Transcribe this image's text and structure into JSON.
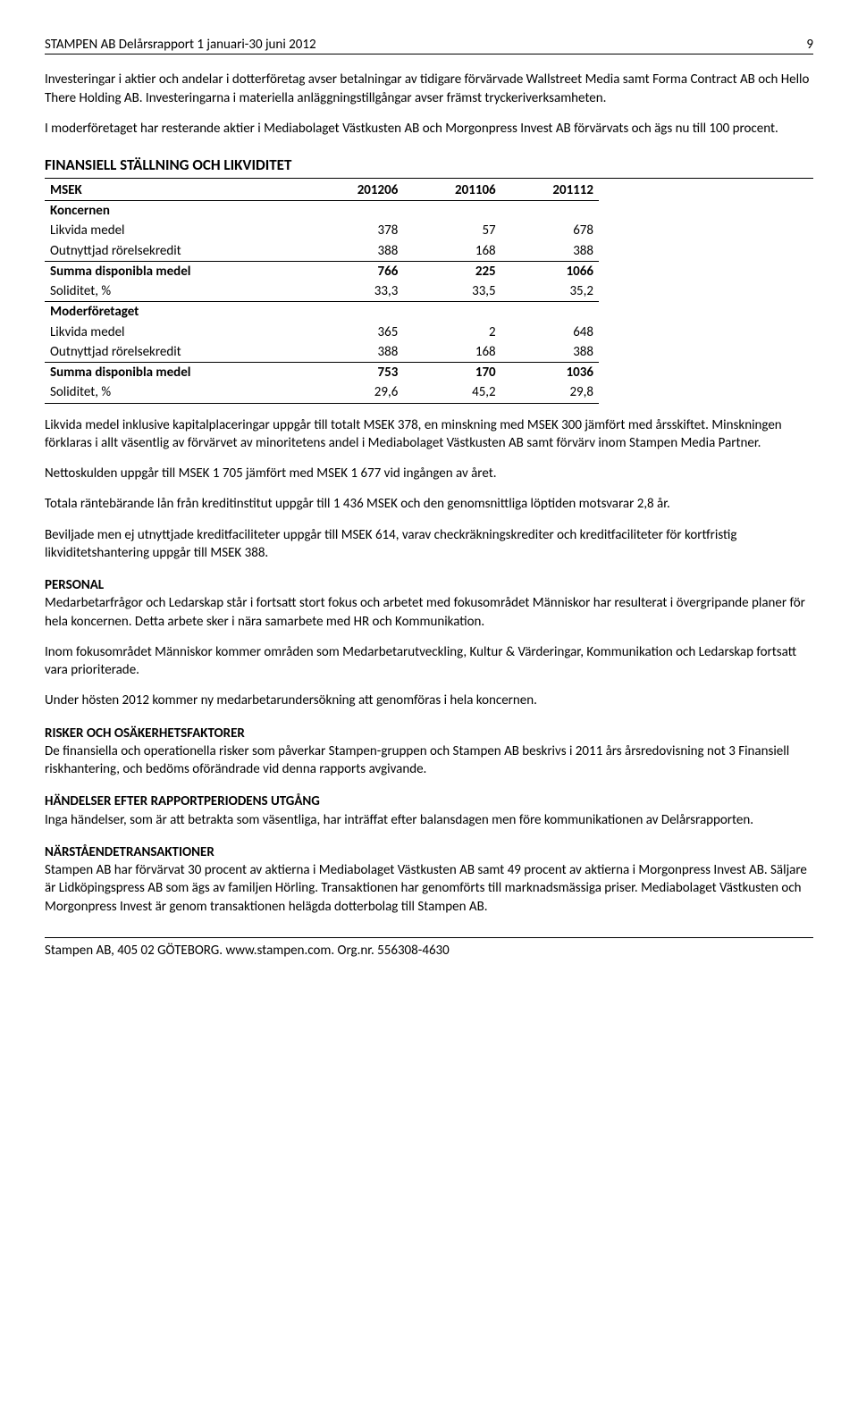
{
  "header": {
    "title": "STAMPEN AB Delårsrapport 1 januari-30 juni 2012",
    "page_number": "9"
  },
  "intro_paragraphs": [
    "Investeringar i aktier och andelar i dotterföretag avser betalningar av tidigare förvärvade Wallstreet Media samt Forma Contract AB och Hello There Holding AB. Investeringarna i materiella anläggningstillgångar avser främst tryckeriverksamheten.",
    "I moderföretaget har resterande aktier i Mediabolaget Västkusten AB och Morgonpress Invest AB förvärvats och ägs nu till 100 procent."
  ],
  "table": {
    "heading": "FINANSIELL STÄLLNING OCH LIKVIDITET",
    "header_row": [
      "MSEK",
      "201206",
      "201106",
      "201112"
    ],
    "rows": [
      {
        "label": "Koncernen",
        "values": [
          "",
          "",
          ""
        ],
        "style": "sectionrow"
      },
      {
        "label": "Likvida medel",
        "values": [
          "378",
          "57",
          "678"
        ],
        "style": ""
      },
      {
        "label": "Outnyttjad rörelsekredit",
        "values": [
          "388",
          "168",
          "388"
        ],
        "style": "underline"
      },
      {
        "label": "Summa disponibla medel",
        "values": [
          "766",
          "225",
          "1066"
        ],
        "style": "bold"
      },
      {
        "label": "Soliditet, %",
        "values": [
          "33,3",
          "33,5",
          "35,2"
        ],
        "style": "underline"
      },
      {
        "label": "Moderföretaget",
        "values": [
          "",
          "",
          ""
        ],
        "style": "sectionrow"
      },
      {
        "label": "Likvida medel",
        "values": [
          "365",
          "2",
          "648"
        ],
        "style": ""
      },
      {
        "label": "Outnyttjad rörelsekredit",
        "values": [
          "388",
          "168",
          "388"
        ],
        "style": "underline"
      },
      {
        "label": "Summa disponibla medel",
        "values": [
          "753",
          "170",
          "1036"
        ],
        "style": "bold"
      },
      {
        "label": "Soliditet, %",
        "values": [
          "29,6",
          "45,2",
          "29,8"
        ],
        "style": "underline"
      }
    ]
  },
  "body_paragraphs": [
    "Likvida medel inklusive kapitalplaceringar uppgår till totalt MSEK 378, en minskning med MSEK 300 jämfört med årsskiftet. Minskningen förklaras i allt väsentlig av förvärvet av minoritetens andel i Mediabolaget Västkusten AB samt förvärv inom Stampen Media Partner.",
    "Nettoskulden uppgår till MSEK 1 705 jämfört med MSEK 1 677 vid ingången av året.",
    "Totala räntebärande lån från kreditinstitut uppgår till 1 436 MSEK och den genomsnittliga löptiden motsvarar 2,8 år.",
    "Beviljade men ej utnyttjade kreditfaciliteter uppgår till MSEK 614, varav checkräkningskrediter och kreditfaciliteter för kortfristig likviditetshantering uppgår till MSEK 388."
  ],
  "sections": [
    {
      "heading": "PERSONAL",
      "paragraphs": [
        "Medarbetarfrågor och Ledarskap står i fortsatt stort fokus och arbetet med fokusområdet Människor har resulterat i övergripande planer för hela koncernen. Detta arbete sker i nära samarbete med HR och Kommunikation.",
        "Inom fokusområdet Människor kommer områden som Medarbetarutveckling, Kultur & Värderingar, Kommunikation och Ledarskap fortsatt vara prioriterade.",
        "Under hösten 2012 kommer ny medarbetarundersökning att genomföras i hela koncernen."
      ]
    },
    {
      "heading": "RISKER OCH OSÄKERHETSFAKTORER",
      "paragraphs": [
        "De finansiella och operationella risker som påverkar Stampen-gruppen och Stampen AB beskrivs i 2011 års årsredovisning not 3 Finansiell riskhantering, och bedöms oförändrade vid denna rapports avgivande."
      ]
    },
    {
      "heading": "HÄNDELSER EFTER RAPPORTPERIODENS UTGÅNG",
      "paragraphs": [
        "Inga händelser, som är att betrakta som väsentliga, har inträffat efter balansdagen men före kommunikationen av Delårsrapporten."
      ]
    },
    {
      "heading": "NÄRSTÅENDETRANSAKTIONER",
      "paragraphs": [
        "Stampen AB har förvärvat 30 procent av aktierna i Mediabolaget Västkusten AB samt 49 procent av aktierna i Morgonpress Invest AB. Säljare är Lidköpingspress AB  som ägs av familjen Hörling. Transaktionen har genomförts till marknadsmässiga priser. Mediabolaget Västkusten och Morgonpress Invest är genom transaktionen helägda dotterbolag till Stampen AB."
      ]
    }
  ],
  "footer": "Stampen AB, 405 02 GÖTEBORG. www.stampen.com.  Org.nr. 556308-4630"
}
